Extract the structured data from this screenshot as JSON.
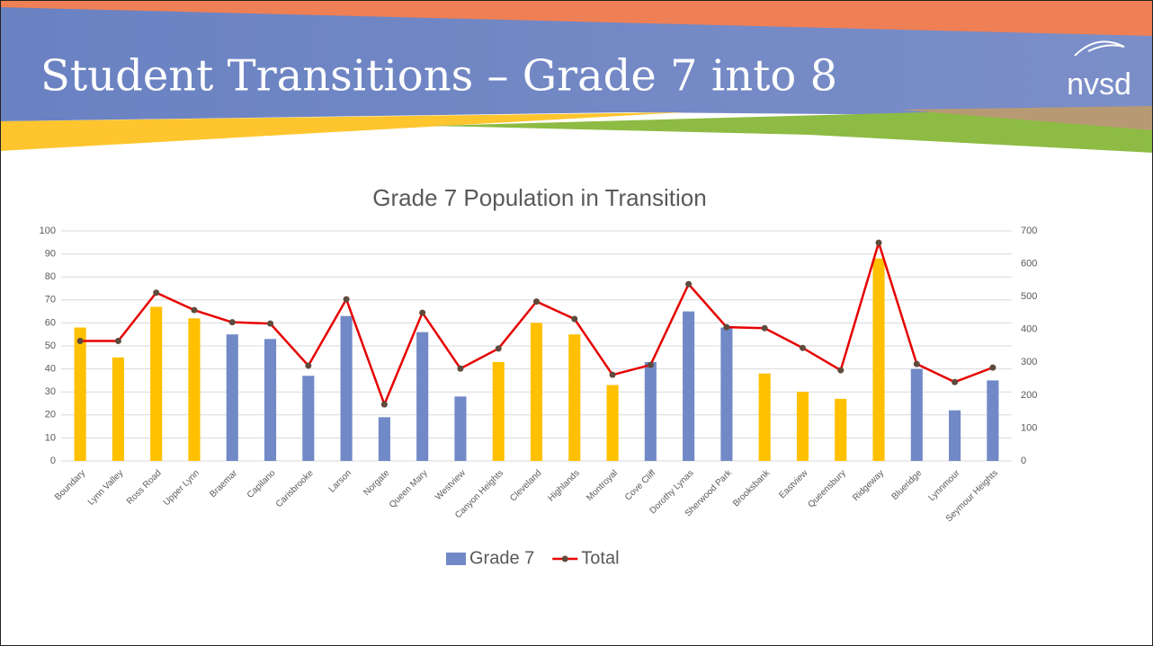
{
  "slide": {
    "title": "Student Transitions – Grade 7 into 8",
    "logo": "nvsd"
  },
  "chart_data": {
    "type": "combo",
    "title": "Grade 7 Population in Transition",
    "categories": [
      "Boundary",
      "Lynn Valley",
      "Ross Road",
      "Upper Lynn",
      "Braemar",
      "Capilano",
      "Carisbrooke",
      "Larson",
      "Norgate",
      "Queen Mary",
      "Westview",
      "Canyon Heights",
      "Cleveland",
      "Highlands",
      "Montroyal",
      "Cove Cliff",
      "Dorothy Lynas",
      "Sherwood Park",
      "Brooksbank",
      "Eastview",
      "Queensbury",
      "Ridgeway",
      "Blueridge",
      "Lynnmour",
      "Seymour Heights"
    ],
    "series": [
      {
        "name": "Grade 7",
        "type": "bar",
        "color": "#7189c6",
        "colors": [
          "#ffc000",
          "#ffc000",
          "#ffc000",
          "#ffc000",
          "#7189c6",
          "#7189c6",
          "#7189c6",
          "#7189c6",
          "#7189c6",
          "#7189c6",
          "#7189c6",
          "#ffc000",
          "#ffc000",
          "#ffc000",
          "#ffc000",
          "#7189c6",
          "#7189c6",
          "#7189c6",
          "#ffc000",
          "#ffc000",
          "#ffc000",
          "#ffc000",
          "#7189c6",
          "#7189c6",
          "#7189c6"
        ],
        "values": [
          58,
          45,
          67,
          62,
          55,
          53,
          37,
          63,
          19,
          56,
          28,
          43,
          60,
          55,
          33,
          43,
          65,
          58,
          38,
          30,
          27,
          88,
          40,
          22,
          35
        ]
      },
      {
        "name": "Total",
        "type": "line",
        "axis": "y2",
        "color": "#e60000",
        "marker_color": "#5e4b3c",
        "values": [
          365,
          365,
          512,
          459,
          422,
          418,
          290,
          492,
          172,
          451,
          281,
          342,
          485,
          432,
          262,
          292,
          538,
          407,
          404,
          344,
          276,
          664,
          295,
          240,
          284
        ]
      }
    ],
    "ylim": [
      0,
      100
    ],
    "yticks": [
      0,
      10,
      20,
      30,
      40,
      50,
      60,
      70,
      80,
      90,
      100
    ],
    "y2lim": [
      0,
      700
    ],
    "y2ticks": [
      0,
      100,
      200,
      300,
      400,
      500,
      600,
      700
    ],
    "grid": true,
    "legend": "bottom"
  }
}
